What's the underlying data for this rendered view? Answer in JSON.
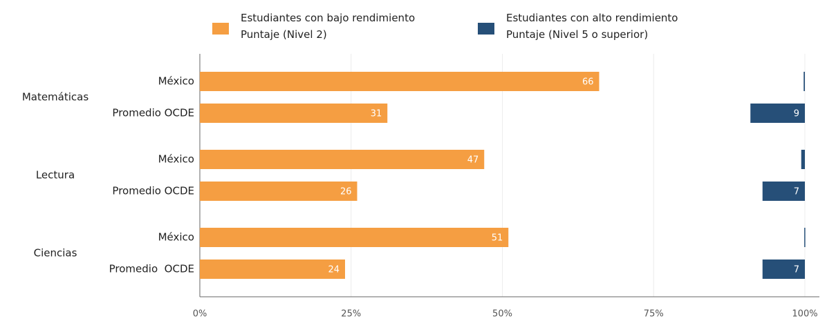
{
  "chart_data": {
    "type": "bar",
    "orientation": "horizontal",
    "groups": [
      "Matemáticas",
      "Lectura",
      "Ciencias"
    ],
    "categories": [
      "México",
      "Promedio OCDE",
      "México",
      "Promedio OCDE",
      "México",
      "Promedio  OCDE"
    ],
    "series": [
      {
        "name": "Estudiantes con bajo rendimiento\nPuntaje (Nivel 2)",
        "color": "#f59e42",
        "anchor": "start",
        "values": [
          66,
          31,
          47,
          26,
          51,
          24
        ]
      },
      {
        "name": "Estudiantes con alto rendimiento\nPuntaje (Nivel 5 o superior)",
        "color": "#264f78",
        "anchor": "end",
        "values": [
          0.2,
          9,
          0.6,
          7,
          0.1,
          7
        ],
        "value_labels": [
          null,
          "9",
          null,
          "7",
          null,
          "7"
        ]
      }
    ],
    "xlim": [
      0,
      100
    ],
    "xticks": [
      {
        "value": 0,
        "label": "0%"
      },
      {
        "value": 25,
        "label": "25%"
      },
      {
        "value": 50,
        "label": "50%"
      },
      {
        "value": 75,
        "label": "75%"
      },
      {
        "value": 100,
        "label": "100%"
      }
    ],
    "grid": true,
    "legend": "top"
  }
}
